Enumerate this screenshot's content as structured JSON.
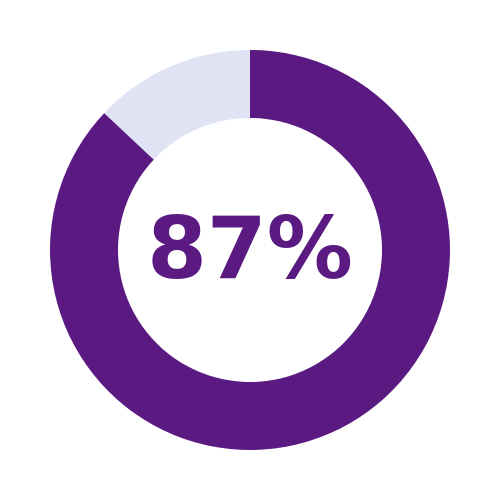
{
  "chart_data": {
    "type": "pie",
    "style": "donut",
    "center_label": "87%",
    "slices": [
      {
        "label": "",
        "value": 87,
        "color": "#5a1a82"
      },
      {
        "label": "",
        "value": 13,
        "color": "#dfe3f4"
      }
    ],
    "start": "top",
    "direction": "clockwise"
  },
  "colors": {
    "accent": "#5a1a82",
    "track": "#dfe3f4",
    "background": "#ffffff"
  }
}
